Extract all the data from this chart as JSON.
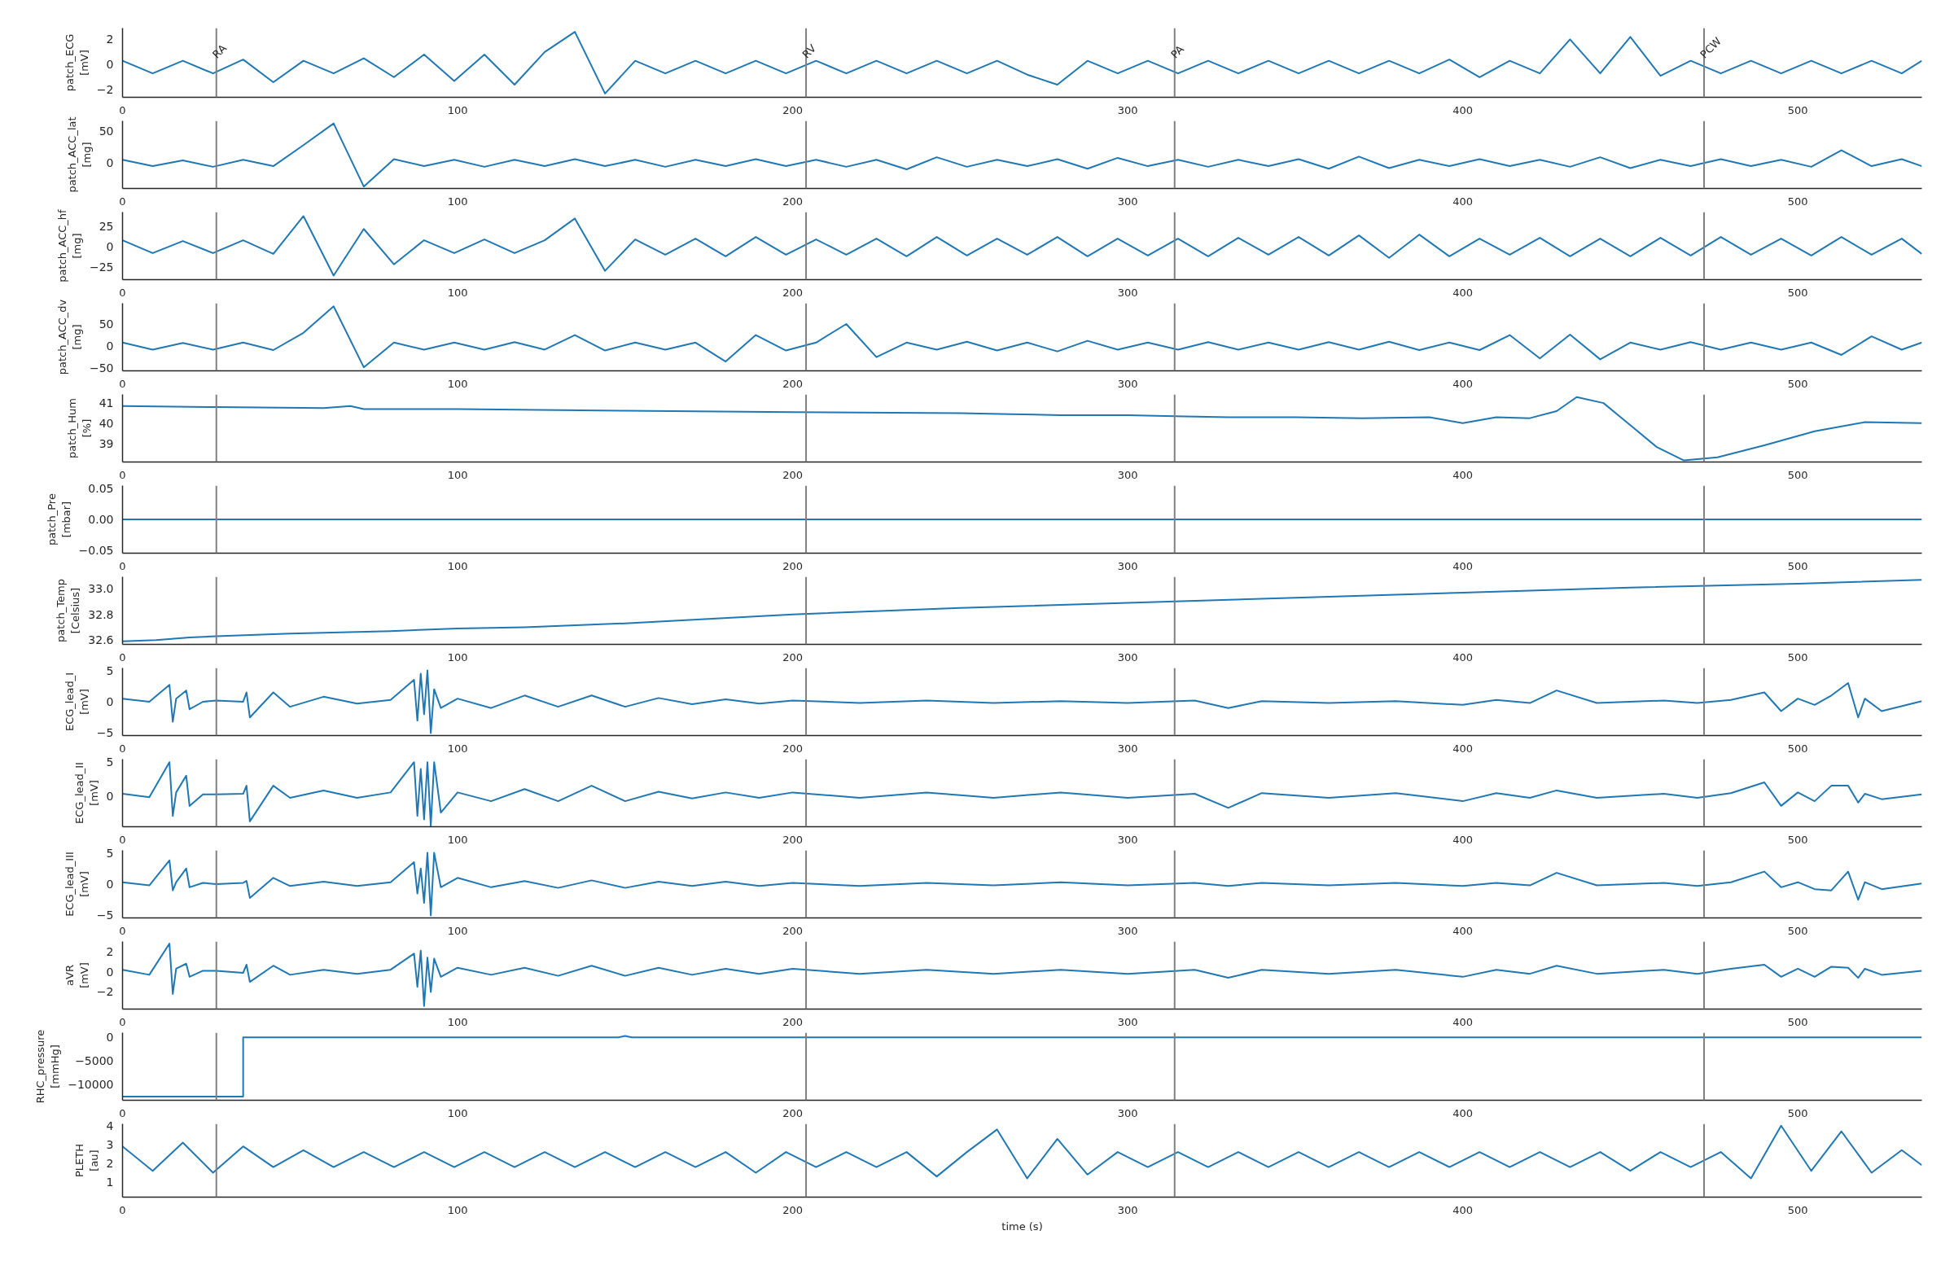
{
  "chart_data": [
    {
      "type": "line",
      "ylabel": "patch_ECG\n[mV]",
      "xlim": [
        0,
        537
      ],
      "ylim": [
        -2.6,
        2.9
      ],
      "xticks": [
        0,
        100,
        200,
        300,
        400,
        500
      ],
      "yticks": [
        {
          "value": -2,
          "label": "−2"
        },
        0,
        2
      ],
      "ref_lines": [
        {
          "axis": "x",
          "value": 28,
          "label": "RA",
          "color": "#808080"
        },
        {
          "axis": "x",
          "value": 204,
          "label": "RV",
          "color": "#808080"
        },
        {
          "axis": "x",
          "value": 314,
          "label": "PA",
          "color": "#808080"
        },
        {
          "axis": "x",
          "value": 472,
          "label": "PCW",
          "color": "#808080"
        }
      ],
      "x": [
        0,
        9,
        18,
        27,
        36,
        45,
        54,
        63,
        72,
        81,
        90,
        99,
        108,
        117,
        126,
        135,
        144,
        153,
        162,
        171,
        180,
        189,
        198,
        207,
        216,
        225,
        234,
        243,
        252,
        261,
        270,
        279,
        288,
        297,
        306,
        315,
        324,
        333,
        342,
        351,
        360,
        369,
        378,
        387,
        396,
        405,
        414,
        423,
        432,
        441,
        450,
        459,
        468,
        477,
        486,
        495,
        504,
        513,
        522,
        531,
        537
      ],
      "series": [
        {
          "color": "#1f77b4",
          "values": [
            0.3,
            -0.7,
            0.3,
            -0.7,
            0.4,
            -1.4,
            0.3,
            -0.7,
            0.5,
            -1.0,
            0.8,
            -1.3,
            0.8,
            -1.6,
            1.0,
            2.6,
            -2.3,
            0.3,
            -0.7,
            0.3,
            -0.7,
            0.3,
            -0.7,
            0.3,
            -0.7,
            0.3,
            -0.7,
            0.3,
            -0.7,
            0.3,
            -0.8,
            -1.6,
            0.3,
            -0.7,
            0.3,
            -0.7,
            0.3,
            -0.7,
            0.3,
            -0.7,
            0.3,
            -0.7,
            0.3,
            -0.7,
            0.4,
            -1.0,
            0.3,
            -0.7,
            2.0,
            -0.7,
            2.2,
            -0.9,
            0.3,
            -0.7,
            0.3,
            -0.7,
            0.3,
            -0.7,
            0.3,
            -0.7,
            0.3
          ]
        }
      ]
    },
    {
      "type": "line",
      "ylabel": "patch_ACC_lat\n[mg]",
      "xlim": [
        0,
        537
      ],
      "ylim": [
        -40,
        66
      ],
      "xticks": [
        0,
        100,
        200,
        300,
        400,
        500
      ],
      "yticks": [
        0,
        50
      ],
      "ref_lines": [
        {
          "axis": "x",
          "value": 28,
          "color": "#808080"
        },
        {
          "axis": "x",
          "value": 204,
          "color": "#808080"
        },
        {
          "axis": "x",
          "value": 314,
          "color": "#808080"
        },
        {
          "axis": "x",
          "value": 472,
          "color": "#808080"
        }
      ],
      "x": [
        0,
        9,
        18,
        27,
        36,
        45,
        54,
        63,
        72,
        81,
        90,
        99,
        108,
        117,
        126,
        135,
        144,
        153,
        162,
        171,
        180,
        189,
        198,
        207,
        216,
        225,
        234,
        243,
        252,
        261,
        270,
        279,
        288,
        297,
        306,
        315,
        324,
        333,
        342,
        351,
        360,
        369,
        378,
        387,
        396,
        405,
        414,
        423,
        432,
        441,
        450,
        459,
        468,
        477,
        486,
        495,
        504,
        513,
        522,
        531,
        537
      ],
      "series": [
        {
          "color": "#1f77b4",
          "values": [
            5,
            -5,
            4,
            -6,
            5,
            -5,
            28,
            62,
            -37,
            6,
            -5,
            5,
            -6,
            5,
            -5,
            6,
            -5,
            5,
            -6,
            5,
            -5,
            6,
            -5,
            5,
            -6,
            5,
            -10,
            9,
            -6,
            5,
            -5,
            6,
            -9,
            8,
            -5,
            5,
            -6,
            5,
            -5,
            6,
            -9,
            10,
            -8,
            5,
            -5,
            6,
            -5,
            5,
            -6,
            9,
            -8,
            5,
            -5,
            6,
            -5,
            5,
            -6,
            20,
            -5,
            6,
            -5
          ]
        }
      ]
    },
    {
      "type": "line",
      "ylabel": "patch_ACC_hf\n[mg]",
      "xlim": [
        0,
        537
      ],
      "ylim": [
        -41,
        43
      ],
      "xticks": [
        0,
        100,
        200,
        300,
        400,
        500
      ],
      "yticks": [
        {
          "value": -25,
          "label": "−25"
        },
        0,
        25
      ],
      "ref_lines": [
        {
          "axis": "x",
          "value": 28,
          "color": "#808080"
        },
        {
          "axis": "x",
          "value": 204,
          "color": "#808080"
        },
        {
          "axis": "x",
          "value": 314,
          "color": "#808080"
        },
        {
          "axis": "x",
          "value": 472,
          "color": "#808080"
        }
      ],
      "x": [
        0,
        9,
        18,
        27,
        36,
        45,
        54,
        63,
        72,
        81,
        90,
        99,
        108,
        117,
        126,
        135,
        144,
        153,
        162,
        171,
        180,
        189,
        198,
        207,
        216,
        225,
        234,
        243,
        252,
        261,
        270,
        279,
        288,
        297,
        306,
        315,
        324,
        333,
        342,
        351,
        360,
        369,
        378,
        387,
        396,
        405,
        414,
        423,
        432,
        441,
        450,
        459,
        468,
        477,
        486,
        495,
        504,
        513,
        522,
        531,
        537
      ],
      "series": [
        {
          "color": "#1f77b4",
          "values": [
            8,
            -8,
            7,
            -8,
            8,
            -9,
            38,
            -36,
            22,
            -22,
            8,
            -8,
            9,
            -8,
            8,
            35,
            -30,
            9,
            -10,
            10,
            -12,
            12,
            -10,
            9,
            -10,
            10,
            -12,
            12,
            -11,
            10,
            -10,
            12,
            -12,
            10,
            -11,
            10,
            -12,
            11,
            -10,
            12,
            -11,
            14,
            -14,
            15,
            -12,
            10,
            -10,
            11,
            -12,
            10,
            -12,
            11,
            -11,
            12,
            -10,
            10,
            -11,
            12,
            -10,
            10,
            -9
          ]
        }
      ]
    },
    {
      "type": "line",
      "ylabel": "patch_ACC_dv\n[mg]",
      "xlim": [
        0,
        537
      ],
      "ylim": [
        -56,
        97
      ],
      "xticks": [
        0,
        100,
        200,
        300,
        400,
        500
      ],
      "yticks": [
        {
          "value": -50,
          "label": "−50"
        },
        0,
        50
      ],
      "ref_lines": [
        {
          "axis": "x",
          "value": 28,
          "color": "#808080"
        },
        {
          "axis": "x",
          "value": 204,
          "color": "#808080"
        },
        {
          "axis": "x",
          "value": 314,
          "color": "#808080"
        },
        {
          "axis": "x",
          "value": 472,
          "color": "#808080"
        }
      ],
      "x": [
        0,
        9,
        18,
        27,
        36,
        45,
        54,
        63,
        72,
        81,
        90,
        99,
        108,
        117,
        126,
        135,
        144,
        153,
        162,
        171,
        180,
        189,
        198,
        207,
        216,
        225,
        234,
        243,
        252,
        261,
        270,
        279,
        288,
        297,
        306,
        315,
        324,
        333,
        342,
        351,
        360,
        369,
        378,
        387,
        396,
        405,
        414,
        423,
        432,
        441,
        450,
        459,
        468,
        477,
        486,
        495,
        504,
        513,
        522,
        531,
        537
      ],
      "series": [
        {
          "color": "#1f77b4",
          "values": [
            8,
            -8,
            7,
            -8,
            8,
            -9,
            30,
            90,
            -48,
            8,
            -8,
            8,
            -8,
            9,
            -8,
            25,
            -10,
            8,
            -8,
            8,
            -35,
            25,
            -10,
            8,
            50,
            -25,
            8,
            -8,
            10,
            -10,
            8,
            -12,
            12,
            -8,
            8,
            -8,
            9,
            -8,
            8,
            -8,
            9,
            -8,
            10,
            -9,
            8,
            -9,
            25,
            -28,
            26,
            -30,
            8,
            -8,
            9,
            -8,
            8,
            -8,
            8,
            -20,
            22,
            -8,
            8
          ]
        }
      ]
    },
    {
      "type": "line",
      "ylabel": "patch_Hum\n[%]",
      "xlim": [
        0,
        537
      ],
      "ylim": [
        38.07,
        41.43
      ],
      "xticks": [
        0,
        100,
        200,
        300,
        400,
        500
      ],
      "yticks": [
        39,
        40,
        41
      ],
      "ref_lines": [
        {
          "axis": "x",
          "value": 28,
          "color": "#808080"
        },
        {
          "axis": "x",
          "value": 204,
          "color": "#808080"
        },
        {
          "axis": "x",
          "value": 314,
          "color": "#808080"
        },
        {
          "axis": "x",
          "value": 472,
          "color": "#808080"
        }
      ],
      "x": [
        0,
        28,
        60,
        68,
        72,
        100,
        150,
        200,
        250,
        265,
        280,
        300,
        314,
        330,
        350,
        370,
        390,
        400,
        410,
        420,
        428,
        434,
        442,
        450,
        458,
        466,
        476,
        490,
        505,
        520,
        537
      ],
      "series": [
        {
          "color": "#1f77b4",
          "values": [
            40.85,
            40.8,
            40.75,
            40.85,
            40.7,
            40.7,
            40.62,
            40.55,
            40.5,
            40.45,
            40.4,
            40.4,
            40.35,
            40.3,
            40.3,
            40.25,
            40.3,
            40.0,
            40.3,
            40.25,
            40.6,
            41.3,
            41.0,
            39.9,
            38.8,
            38.15,
            38.3,
            38.9,
            39.6,
            40.05,
            40.0
          ]
        }
      ]
    },
    {
      "type": "line",
      "ylabel": "patch_Pre\n[mbar]",
      "xlim": [
        0,
        537
      ],
      "ylim": [
        -0.055,
        0.055
      ],
      "xticks": [
        0,
        100,
        200,
        300,
        400,
        500
      ],
      "yticks": [
        {
          "value": -0.05,
          "label": "−0.05"
        },
        {
          "value": 0,
          "label": "0.00"
        },
        0.05
      ],
      "ref_lines": [
        {
          "axis": "x",
          "value": 28,
          "color": "#808080"
        },
        {
          "axis": "x",
          "value": 204,
          "color": "#808080"
        },
        {
          "axis": "x",
          "value": 314,
          "color": "#808080"
        },
        {
          "axis": "x",
          "value": 472,
          "color": "#808080"
        }
      ],
      "x": [
        0,
        537
      ],
      "series": [
        {
          "color": "#1f77b4",
          "values": [
            0,
            0
          ]
        }
      ]
    },
    {
      "type": "line",
      "ylabel": "patch_Temp\n[Celsius]",
      "xlim": [
        0,
        537
      ],
      "ylim": [
        32.566,
        33.094
      ],
      "xticks": [
        0,
        100,
        200,
        300,
        400,
        500
      ],
      "yticks": [
        32.6,
        32.8,
        {
          "value": 33,
          "label": "33.0"
        }
      ],
      "ref_lines": [
        {
          "axis": "x",
          "value": 28,
          "color": "#808080"
        },
        {
          "axis": "x",
          "value": 204,
          "color": "#808080"
        },
        {
          "axis": "x",
          "value": 314,
          "color": "#808080"
        },
        {
          "axis": "x",
          "value": 472,
          "color": "#808080"
        }
      ],
      "x": [
        0,
        10,
        20,
        28,
        50,
        80,
        100,
        120,
        150,
        200,
        250,
        300,
        350,
        400,
        450,
        500,
        537
      ],
      "series": [
        {
          "color": "#1f77b4",
          "values": [
            32.59,
            32.6,
            32.62,
            32.63,
            32.65,
            32.67,
            32.69,
            32.7,
            32.73,
            32.8,
            32.85,
            32.89,
            32.93,
            32.97,
            33.01,
            33.04,
            33.07
          ]
        }
      ]
    },
    {
      "type": "line",
      "ylabel": "ECG_lead_I\n[mV]",
      "xlim": [
        0,
        537
      ],
      "ylim": [
        -5.4,
        5.4
      ],
      "xticks": [
        0,
        100,
        200,
        300,
        400,
        500
      ],
      "yticks": [
        {
          "value": -5,
          "label": "−5"
        },
        0,
        5
      ],
      "ref_lines": [
        {
          "axis": "x",
          "value": 28,
          "color": "#808080"
        },
        {
          "axis": "x",
          "value": 204,
          "color": "#808080"
        },
        {
          "axis": "x",
          "value": 314,
          "color": "#808080"
        },
        {
          "axis": "x",
          "value": 472,
          "color": "#808080"
        }
      ],
      "x": [
        0,
        8,
        14,
        15,
        16,
        19,
        20,
        24,
        28,
        36,
        37,
        38,
        45,
        50,
        60,
        70,
        80,
        87,
        88,
        89,
        90,
        91,
        92,
        93,
        95,
        100,
        110,
        120,
        130,
        140,
        150,
        160,
        170,
        180,
        190,
        200,
        220,
        240,
        260,
        280,
        300,
        320,
        330,
        340,
        360,
        380,
        400,
        410,
        420,
        428,
        440,
        460,
        470,
        480,
        490,
        495,
        500,
        505,
        510,
        515,
        518,
        520,
        525,
        537
      ],
      "series": [
        {
          "color": "#1f77b4",
          "values": [
            0.5,
            0,
            2.7,
            -3.2,
            0.5,
            1.8,
            -1.2,
            0,
            0.2,
            0,
            1.5,
            -2.5,
            1.5,
            -0.8,
            0.8,
            -0.3,
            0.3,
            3.5,
            -3.0,
            4.5,
            -2.0,
            5.0,
            -5.0,
            2.0,
            -1.0,
            0.5,
            -1.0,
            1.0,
            -0.8,
            1.0,
            -0.8,
            0.6,
            -0.4,
            0.4,
            -0.3,
            0.2,
            -0.2,
            0.2,
            -0.2,
            0.1,
            -0.2,
            0.2,
            -1.0,
            0.1,
            -0.2,
            0.1,
            -0.5,
            0.3,
            -0.2,
            1.8,
            -0.2,
            0.2,
            -0.2,
            0.3,
            1.5,
            -1.5,
            0.5,
            -0.5,
            1.0,
            3.0,
            -2.5,
            0.5,
            -1.5,
            0.1
          ]
        }
      ]
    },
    {
      "type": "line",
      "ylabel": "ECG_lead_II\n[mV]",
      "xlim": [
        0,
        537
      ],
      "ylim": [
        -4.6,
        5.45
      ],
      "xticks": [
        0,
        100,
        200,
        300,
        400,
        500
      ],
      "yticks": [
        0,
        5
      ],
      "ref_lines": [
        {
          "axis": "x",
          "value": 28,
          "color": "#808080"
        },
        {
          "axis": "x",
          "value": 204,
          "color": "#808080"
        },
        {
          "axis": "x",
          "value": 314,
          "color": "#808080"
        },
        {
          "axis": "x",
          "value": 472,
          "color": "#808080"
        }
      ],
      "x": [
        0,
        8,
        14,
        15,
        16,
        19,
        20,
        24,
        28,
        36,
        37,
        38,
        45,
        50,
        60,
        70,
        80,
        87,
        88,
        89,
        90,
        91,
        92,
        93,
        95,
        100,
        110,
        120,
        130,
        140,
        150,
        160,
        170,
        180,
        190,
        200,
        220,
        240,
        260,
        280,
        300,
        320,
        330,
        340,
        360,
        380,
        400,
        410,
        420,
        428,
        440,
        460,
        470,
        480,
        490,
        495,
        500,
        505,
        510,
        515,
        518,
        520,
        525,
        537
      ],
      "series": [
        {
          "color": "#1f77b4",
          "values": [
            0.3,
            -0.2,
            5.0,
            -3.0,
            0.5,
            3.0,
            -1.5,
            0.2,
            0.2,
            0.3,
            1.5,
            -3.8,
            1.5,
            -0.3,
            0.8,
            -0.3,
            0.5,
            5.0,
            -3.0,
            4.0,
            -3.5,
            5.0,
            -4.5,
            5.0,
            -2.5,
            0.5,
            -0.8,
            1.0,
            -0.8,
            1.5,
            -0.8,
            0.6,
            -0.4,
            0.5,
            -0.3,
            0.5,
            -0.3,
            0.5,
            -0.3,
            0.5,
            -0.3,
            0.3,
            -1.8,
            0.4,
            -0.3,
            0.4,
            -0.8,
            0.4,
            -0.3,
            0.8,
            -0.3,
            0.3,
            -0.3,
            0.4,
            2.0,
            -1.5,
            0.5,
            -0.8,
            1.5,
            1.5,
            -1.0,
            0.3,
            -0.5,
            0.2
          ]
        }
      ]
    },
    {
      "type": "line",
      "ylabel": "ECG_lead_III\n[mV]",
      "xlim": [
        0,
        537
      ],
      "ylim": [
        -5.4,
        5.4
      ],
      "xticks": [
        0,
        100,
        200,
        300,
        400,
        500
      ],
      "yticks": [
        {
          "value": -5,
          "label": "−5"
        },
        0,
        5
      ],
      "ref_lines": [
        {
          "axis": "x",
          "value": 28,
          "color": "#808080"
        },
        {
          "axis": "x",
          "value": 204,
          "color": "#808080"
        },
        {
          "axis": "x",
          "value": 314,
          "color": "#808080"
        },
        {
          "axis": "x",
          "value": 472,
          "color": "#808080"
        }
      ],
      "x": [
        0,
        8,
        14,
        15,
        16,
        19,
        20,
        24,
        28,
        36,
        37,
        38,
        45,
        50,
        60,
        70,
        80,
        87,
        88,
        89,
        90,
        91,
        92,
        93,
        95,
        100,
        110,
        120,
        130,
        140,
        150,
        160,
        170,
        180,
        190,
        200,
        220,
        240,
        260,
        280,
        300,
        320,
        330,
        340,
        360,
        380,
        400,
        410,
        420,
        428,
        440,
        460,
        470,
        480,
        490,
        495,
        500,
        505,
        510,
        515,
        518,
        520,
        525,
        537
      ],
      "series": [
        {
          "color": "#1f77b4",
          "values": [
            0.3,
            -0.2,
            3.8,
            -1.0,
            0.3,
            2.5,
            -0.5,
            0.2,
            0.0,
            0.2,
            0.5,
            -2.2,
            1.0,
            -0.3,
            0.4,
            -0.3,
            0.3,
            3.5,
            -1.5,
            2.5,
            -3.0,
            5.0,
            -5.0,
            5.0,
            -0.5,
            1.0,
            -0.5,
            0.5,
            -0.6,
            0.6,
            -0.6,
            0.4,
            -0.3,
            0.4,
            -0.3,
            0.2,
            -0.3,
            0.2,
            -0.2,
            0.3,
            -0.2,
            0.2,
            -0.3,
            0.2,
            -0.2,
            0.2,
            -0.3,
            0.2,
            -0.2,
            1.8,
            -0.2,
            0.2,
            -0.3,
            0.3,
            2.0,
            -0.5,
            0.3,
            -0.8,
            -1.0,
            2.0,
            -2.5,
            0.3,
            -0.8,
            0.1
          ]
        }
      ]
    },
    {
      "type": "line",
      "ylabel": "aVR\n[mV]",
      "xlim": [
        0,
        537
      ],
      "ylim": [
        -3.7,
        3.0
      ],
      "xticks": [
        0,
        100,
        200,
        300,
        400,
        500
      ],
      "yticks": [
        {
          "value": -2,
          "label": "−2"
        },
        0,
        2
      ],
      "ref_lines": [
        {
          "axis": "x",
          "value": 28,
          "color": "#808080"
        },
        {
          "axis": "x",
          "value": 204,
          "color": "#808080"
        },
        {
          "axis": "x",
          "value": 314,
          "color": "#808080"
        },
        {
          "axis": "x",
          "value": 472,
          "color": "#808080"
        }
      ],
      "x": [
        0,
        8,
        14,
        15,
        16,
        19,
        20,
        24,
        28,
        36,
        37,
        38,
        45,
        50,
        60,
        70,
        80,
        87,
        88,
        89,
        90,
        91,
        92,
        93,
        95,
        100,
        110,
        120,
        130,
        140,
        150,
        160,
        170,
        180,
        190,
        200,
        220,
        240,
        260,
        280,
        300,
        320,
        330,
        340,
        360,
        380,
        400,
        410,
        420,
        428,
        440,
        460,
        470,
        480,
        490,
        495,
        500,
        505,
        510,
        515,
        518,
        520,
        525,
        537
      ],
      "series": [
        {
          "color": "#1f77b4",
          "values": [
            0.2,
            -0.3,
            2.8,
            -2.2,
            0.3,
            0.8,
            -0.5,
            0.1,
            0.1,
            -0.1,
            0.7,
            -1.0,
            0.6,
            -0.3,
            0.2,
            -0.2,
            0.2,
            1.8,
            -1.5,
            2.1,
            -3.4,
            1.4,
            -2.0,
            1.3,
            -0.5,
            0.4,
            -0.3,
            0.4,
            -0.4,
            0.6,
            -0.4,
            0.4,
            -0.3,
            0.3,
            -0.2,
            0.3,
            -0.2,
            0.2,
            -0.2,
            0.2,
            -0.2,
            0.2,
            -0.6,
            0.2,
            -0.2,
            0.2,
            -0.5,
            0.2,
            -0.2,
            0.6,
            -0.2,
            0.2,
            -0.2,
            0.3,
            0.7,
            -0.5,
            0.3,
            -0.5,
            0.5,
            0.4,
            -0.6,
            0.3,
            -0.3,
            0.1
          ]
        }
      ]
    },
    {
      "type": "line",
      "ylabel": "RHC_pressure\n[mmHg]",
      "xlim": [
        0,
        537
      ],
      "ylim": [
        -13400,
        1000
      ],
      "xticks": [
        0,
        100,
        200,
        300,
        400,
        500
      ],
      "yticks": [
        {
          "value": -10000,
          "label": "−10000"
        },
        {
          "value": -5000,
          "label": "−5000"
        },
        0
      ],
      "ref_lines": [
        {
          "axis": "x",
          "value": 28,
          "color": "#808080"
        },
        {
          "axis": "x",
          "value": 204,
          "color": "#808080"
        },
        {
          "axis": "x",
          "value": 314,
          "color": "#808080"
        },
        {
          "axis": "x",
          "value": 472,
          "color": "#808080"
        }
      ],
      "x": [
        0,
        36,
        36,
        148,
        150,
        152,
        537
      ],
      "series": [
        {
          "color": "#1f77b4",
          "values": [
            -12600,
            -12600,
            0,
            0,
            300,
            0,
            0
          ]
        }
      ]
    },
    {
      "type": "line",
      "ylabel": "PLETH\n[au]",
      "xlabel": "time (s)",
      "xlim": [
        0,
        537
      ],
      "ylim": [
        0.2,
        4.1
      ],
      "xticks": [
        0,
        100,
        200,
        300,
        400,
        500
      ],
      "yticks": [
        1,
        2,
        3,
        4
      ],
      "ref_lines": [
        {
          "axis": "x",
          "value": 28,
          "color": "#808080"
        },
        {
          "axis": "x",
          "value": 204,
          "color": "#808080"
        },
        {
          "axis": "x",
          "value": 314,
          "color": "#808080"
        },
        {
          "axis": "x",
          "value": 472,
          "color": "#808080"
        }
      ],
      "x": [
        0,
        9,
        18,
        27,
        36,
        45,
        54,
        63,
        72,
        81,
        90,
        99,
        108,
        117,
        126,
        135,
        144,
        153,
        162,
        171,
        180,
        189,
        198,
        207,
        216,
        225,
        234,
        243,
        252,
        261,
        270,
        279,
        288,
        297,
        306,
        315,
        324,
        333,
        342,
        351,
        360,
        369,
        378,
        387,
        396,
        405,
        414,
        423,
        432,
        441,
        450,
        459,
        468,
        477,
        486,
        495,
        504,
        513,
        522,
        531,
        537
      ],
      "series": [
        {
          "color": "#1f77b4",
          "values": [
            2.9,
            1.6,
            3.1,
            1.5,
            2.9,
            1.8,
            2.7,
            1.8,
            2.6,
            1.8,
            2.6,
            1.8,
            2.6,
            1.8,
            2.6,
            1.8,
            2.6,
            1.8,
            2.6,
            1.8,
            2.6,
            1.5,
            2.6,
            1.8,
            2.6,
            1.8,
            2.6,
            1.3,
            2.6,
            3.8,
            1.2,
            3.3,
            1.4,
            2.6,
            1.8,
            2.6,
            1.8,
            2.6,
            1.8,
            2.6,
            1.8,
            2.6,
            1.8,
            2.6,
            1.8,
            2.6,
            1.8,
            2.6,
            1.8,
            2.6,
            1.6,
            2.6,
            1.8,
            2.6,
            1.2,
            4.0,
            1.6,
            3.7,
            1.5,
            2.7,
            1.9
          ]
        }
      ]
    }
  ]
}
